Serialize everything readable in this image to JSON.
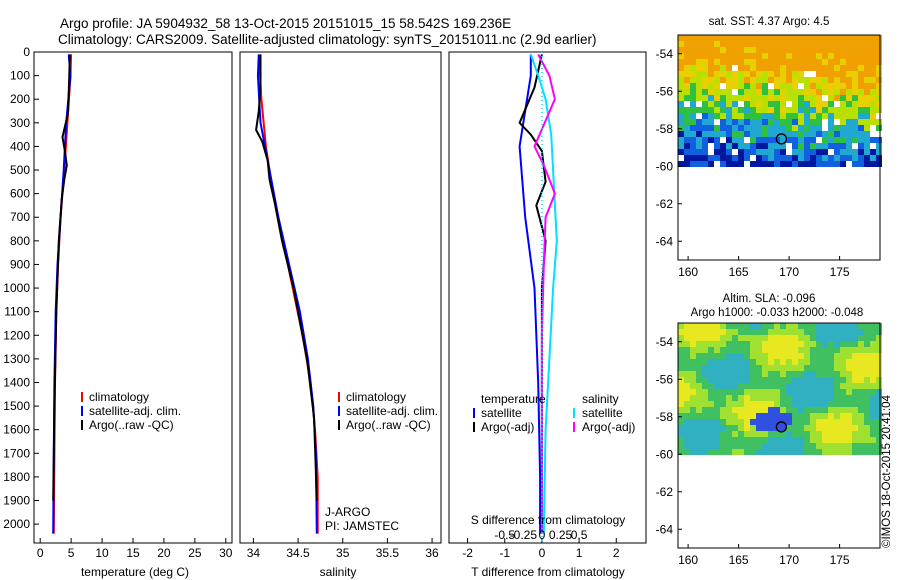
{
  "title_line1": "Argo profile: JA 5904932_58 13-Oct-2015 20151015_15 58.542S 169.236E",
  "title_line2": "Climatology: CARS2009. Satellite-adjusted climatology: synTS_20151011.nc (2.9d earlier)",
  "credit": "©IMOS 18-Oct-2015 20:41:04",
  "colors": {
    "climatology": "#ff0000",
    "satellite": "#0000ff",
    "argo": "#000000",
    "satellite_sal": "#00e0ff",
    "argo_sal": "#ff00ff"
  },
  "chart_data": [
    {
      "type": "line",
      "xlabel": "temperature (deg C)",
      "ylabel": "",
      "xlim": [
        -1,
        31
      ],
      "ylim": [
        2080,
        0
      ],
      "x_ticks": [
        "0",
        "5",
        "10",
        "15",
        "20",
        "25",
        "30"
      ],
      "y_ticks": [
        "0",
        "100",
        "200",
        "300",
        "400",
        "500",
        "600",
        "700",
        "800",
        "900",
        "1000",
        "1100",
        "1200",
        "1300",
        "1400",
        "1500",
        "1600",
        "1700",
        "1800",
        "1900",
        "2000"
      ],
      "legend": [
        "climatology",
        "satellite-adj. clim.",
        "Argo(..raw -QC)"
      ],
      "series": [
        {
          "name": "climatology",
          "color": "#ff0000",
          "points": [
            [
              5.0,
              10
            ],
            [
              4.9,
              100
            ],
            [
              4.4,
              300
            ],
            [
              3.9,
              500
            ],
            [
              3.3,
              700
            ],
            [
              2.9,
              900
            ],
            [
              2.6,
              1100
            ],
            [
              2.4,
              1400
            ],
            [
              2.3,
              1700
            ],
            [
              2.2,
              2040
            ]
          ]
        },
        {
          "name": "satellite-adj. clim.",
          "color": "#0000ff",
          "points": [
            [
              4.6,
              10
            ],
            [
              4.9,
              100
            ],
            [
              4.2,
              300
            ],
            [
              3.8,
              500
            ],
            [
              3.3,
              700
            ],
            [
              2.8,
              900
            ],
            [
              2.5,
              1100
            ],
            [
              2.3,
              1400
            ],
            [
              2.2,
              1700
            ],
            [
              2.1,
              2040
            ]
          ]
        },
        {
          "name": "Argo(..raw -QC)",
          "color": "#000000",
          "points": [
            [
              4.8,
              10
            ],
            [
              4.7,
              100
            ],
            [
              4.5,
              260
            ],
            [
              3.6,
              360
            ],
            [
              4.0,
              420
            ],
            [
              4.3,
              480
            ],
            [
              3.9,
              540
            ],
            [
              3.5,
              620
            ],
            [
              3.0,
              800
            ],
            [
              2.6,
              1100
            ],
            [
              2.3,
              1500
            ],
            [
              2.1,
              1900
            ]
          ]
        }
      ]
    },
    {
      "type": "line",
      "xlabel": "salinity",
      "ylabel": "",
      "xlim": [
        33.85,
        36.1
      ],
      "ylim": [
        2080,
        0
      ],
      "x_ticks": [
        "34",
        "34.5",
        "35",
        "35.5",
        "36"
      ],
      "legend": [
        "climatology",
        "satellite-adj. clim.",
        "Argo(..raw -QC)"
      ],
      "annotations": [
        "J-ARGO",
        "PI: JAMSTEC"
      ],
      "series": [
        {
          "name": "climatology",
          "color": "#ff0000",
          "points": [
            [
              34.06,
              10
            ],
            [
              34.09,
              200
            ],
            [
              34.14,
              400
            ],
            [
              34.22,
              600
            ],
            [
              34.33,
              800
            ],
            [
              34.44,
              1000
            ],
            [
              34.55,
              1200
            ],
            [
              34.64,
              1400
            ],
            [
              34.69,
              1600
            ],
            [
              34.72,
              1800
            ],
            [
              34.72,
              2040
            ]
          ]
        },
        {
          "name": "satellite-adj. clim.",
          "color": "#0000ff",
          "points": [
            [
              34.06,
              10
            ],
            [
              34.05,
              100
            ],
            [
              34.08,
              300
            ],
            [
              34.18,
              500
            ],
            [
              34.28,
              700
            ],
            [
              34.4,
              900
            ],
            [
              34.52,
              1100
            ],
            [
              34.61,
              1300
            ],
            [
              34.67,
              1500
            ],
            [
              34.7,
              1700
            ],
            [
              34.71,
              2040
            ]
          ]
        },
        {
          "name": "Argo(..raw -QC)",
          "color": "#000000",
          "points": [
            [
              34.08,
              10
            ],
            [
              34.08,
              150
            ],
            [
              34.06,
              250
            ],
            [
              34.03,
              330
            ],
            [
              34.1,
              380
            ],
            [
              34.16,
              460
            ],
            [
              34.18,
              540
            ],
            [
              34.24,
              640
            ],
            [
              34.32,
              800
            ],
            [
              34.45,
              1000
            ],
            [
              34.6,
              1300
            ],
            [
              34.68,
              1550
            ],
            [
              34.71,
              1900
            ]
          ]
        }
      ]
    },
    {
      "type": "line",
      "xlabel": "T difference from climatology",
      "x2label": "S difference from climatology",
      "xlim": [
        -2.5,
        2.8
      ],
      "ylim": [
        2080,
        0
      ],
      "x_ticks": [
        "-2",
        "-1",
        "0",
        "1",
        "2"
      ],
      "x2_ticks": [
        "-0.5",
        "-0.25",
        "0",
        "0.25",
        "0.5"
      ],
      "legend_temperature": [
        "temperature",
        "satellite",
        "Argo(-adj)"
      ],
      "legend_salinity": [
        "salinity",
        "satellite",
        "Argo(-adj)"
      ],
      "series": [
        {
          "name": "satellite",
          "color": "#0000ff",
          "points": [
            [
              -0.3,
              10
            ],
            [
              -0.3,
              100
            ],
            [
              -0.5,
              300
            ],
            [
              -0.6,
              400
            ],
            [
              -0.45,
              700
            ],
            [
              -0.2,
              1000
            ],
            [
              -0.1,
              1400
            ],
            [
              -0.05,
              1800
            ],
            [
              -0.05,
              2040
            ]
          ]
        },
        {
          "name": "Argo(-adj)",
          "color": "#000000",
          "points": [
            [
              0,
              10
            ],
            [
              -0.2,
              150
            ],
            [
              -0.6,
              300
            ],
            [
              -0.3,
              350
            ],
            [
              0,
              420
            ],
            [
              0.1,
              550
            ],
            [
              -0.15,
              650
            ],
            [
              0.1,
              800
            ],
            [
              0,
              1000
            ],
            [
              0,
              1500
            ],
            [
              0,
              2040
            ]
          ]
        },
        {
          "name": "satellite",
          "color": "#00e0ff",
          "points": [
            [
              -0.3,
              10
            ],
            [
              -0.1,
              100
            ],
            [
              0.1,
              200
            ],
            [
              0.25,
              350
            ],
            [
              0.3,
              500
            ],
            [
              0.35,
              650
            ],
            [
              0.4,
              800
            ],
            [
              0.3,
              1000
            ],
            [
              0.2,
              1300
            ],
            [
              0.1,
              1600
            ],
            [
              0.05,
              2040
            ]
          ]
        },
        {
          "name": "Argo(-adj)",
          "color": "#ff00ff",
          "points": [
            [
              -0.1,
              10
            ],
            [
              0.2,
              100
            ],
            [
              0.35,
              200
            ],
            [
              -0.2,
              400
            ],
            [
              0.05,
              480
            ],
            [
              0.35,
              600
            ],
            [
              0.1,
              700
            ],
            [
              0.05,
              900
            ],
            [
              0,
              1200
            ],
            [
              0,
              2040
            ]
          ]
        }
      ]
    },
    {
      "type": "heatmap",
      "title": "sat. SST: 4.37  Argo: 4.5",
      "x_ticks": [
        "160",
        "165",
        "170",
        "175"
      ],
      "y_ticks": [
        "-54",
        "-56",
        "-58",
        "-60",
        "-62",
        "-64"
      ],
      "marker": {
        "lon": 169.236,
        "lat": -58.542
      }
    },
    {
      "type": "heatmap",
      "title": "Altim. SLA: -0.096",
      "subtitle": "Argo h1000: -0.033 h2000: -0.048",
      "x_ticks": [
        "160",
        "165",
        "170",
        "175"
      ],
      "y_ticks": [
        "-54",
        "-56",
        "-58",
        "-60",
        "-62",
        "-64"
      ],
      "marker": {
        "lon": 169.236,
        "lat": -58.542
      }
    }
  ]
}
